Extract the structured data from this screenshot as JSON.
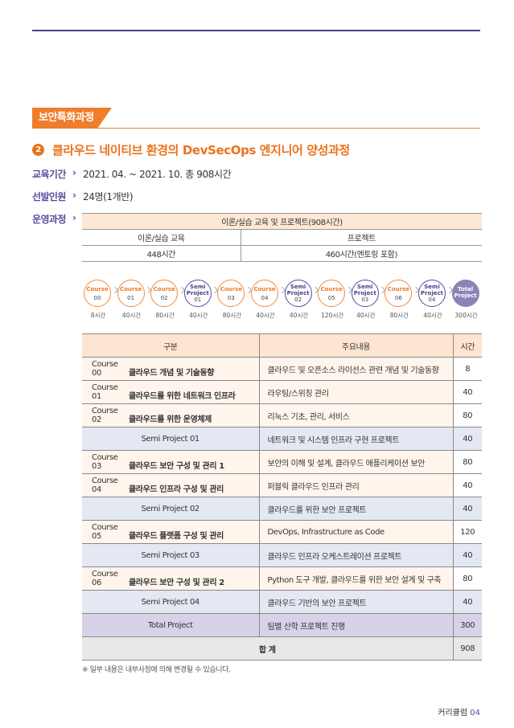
{
  "section_tag": "보안특화과정",
  "course": {
    "number": "2",
    "title": "클라우드 네이티브 환경의 DevSecOps 엔지니어 양성과정"
  },
  "info": [
    {
      "key": "교육기간",
      "value": "2021. 04. ~ 2021. 10. 총 908시간"
    },
    {
      "key": "선발인원",
      "value": "24명(1개반)"
    },
    {
      "key": "운영과정",
      "value": ""
    }
  ],
  "overview": {
    "header": "이론/실습 교육 및 프로젝트(908시간)",
    "col1": "이론/실습 교육",
    "col2": "프로젝트",
    "col1_hours": "448시간",
    "col2_hours": "460시간(멘토링 포함)"
  },
  "flow": [
    {
      "type": "course",
      "l1": "Course",
      "l2": "00",
      "hours": "8시간"
    },
    {
      "type": "course",
      "l1": "Course",
      "l2": "01",
      "hours": "40시간"
    },
    {
      "type": "course",
      "l1": "Course",
      "l2": "02",
      "hours": "80시간"
    },
    {
      "type": "semi",
      "l1": "Semi Project",
      "l2": "01",
      "hours": "40시간"
    },
    {
      "type": "course",
      "l1": "Course",
      "l2": "03",
      "hours": "80시간"
    },
    {
      "type": "course",
      "l1": "Course",
      "l2": "04",
      "hours": "40시간"
    },
    {
      "type": "semi",
      "l1": "Semi Project",
      "l2": "02",
      "hours": "40시간"
    },
    {
      "type": "course",
      "l1": "Course",
      "l2": "05",
      "hours": "120시간"
    },
    {
      "type": "semi",
      "l1": "Semi Project",
      "l2": "03",
      "hours": "40시간"
    },
    {
      "type": "course",
      "l1": "Course",
      "l2": "06",
      "hours": "80시간"
    },
    {
      "type": "semi",
      "l1": "Semi Project",
      "l2": "04",
      "hours": "40시간"
    },
    {
      "type": "total",
      "l1": "Total Project",
      "l2": "",
      "hours": "300시간"
    }
  ],
  "table": {
    "headers": [
      "구분",
      "주요내용",
      "시간"
    ],
    "rows": [
      {
        "type": "course",
        "code": "Course 00",
        "name": "클라우드 개념 및 기술동향",
        "content": "클라우드 및 오픈소스 라이선스 관련 개념 및 기술동향",
        "hours": "8"
      },
      {
        "type": "course",
        "code": "Course 01",
        "name": "클라우드를 위한 네트워크 인프라",
        "content": "라우팅/스위칭 관리",
        "hours": "40"
      },
      {
        "type": "course",
        "code": "Course 02",
        "name": "클라우드를 위한 운영체제",
        "content": "리눅스 기초, 관리, 서비스",
        "hours": "80"
      },
      {
        "type": "semi",
        "code": "",
        "name": "Semi Project 01",
        "content": "네트워크 및 시스템 인프라 구현 프로젝트",
        "hours": "40"
      },
      {
        "type": "course",
        "code": "Course 03",
        "name": "클라우드 보안 구성 및 관리 1",
        "content": "보안의 이해 및 설계, 클라우드 애플리케이션 보안",
        "hours": "80"
      },
      {
        "type": "course",
        "code": "Course 04",
        "name": "클라우드 인프라 구성 및 관리",
        "content": "퍼블릭 클라우드 인프라 관리",
        "hours": "40"
      },
      {
        "type": "semi",
        "code": "",
        "name": "Semi Project 02",
        "content": "클라우드를 위한 보안 프로젝트",
        "hours": "40"
      },
      {
        "type": "course",
        "code": "Course 05",
        "name": "클라우드 플랫폼 구성 및 관리",
        "content": "DevOps, Infrastructure as Code",
        "hours": "120"
      },
      {
        "type": "semi",
        "code": "",
        "name": "Semi Project 03",
        "content": "클라우드 인프라 오케스트레이션 프로젝트",
        "hours": "40"
      },
      {
        "type": "course",
        "code": "Course 06",
        "name": "클라우드 보안 구성 및 관리 2",
        "content": "Python 도구 개발, 클라우드를 위한 보안 설계 및 구축",
        "hours": "80"
      },
      {
        "type": "semi",
        "code": "",
        "name": "Semi Project 04",
        "content": "클라우드 기반의 보안 프로젝트",
        "hours": "40"
      },
      {
        "type": "total",
        "code": "",
        "name": "Total Project",
        "content": "팀별 산학 프로젝트 진행",
        "hours": "300"
      }
    ],
    "sum_label": "합 계",
    "sum_hours": "908"
  },
  "note": "※ 일부 내용은 내부사정에 의해 변경될 수 있습니다.",
  "footer": {
    "label": "커리큘럼",
    "page": "04"
  }
}
